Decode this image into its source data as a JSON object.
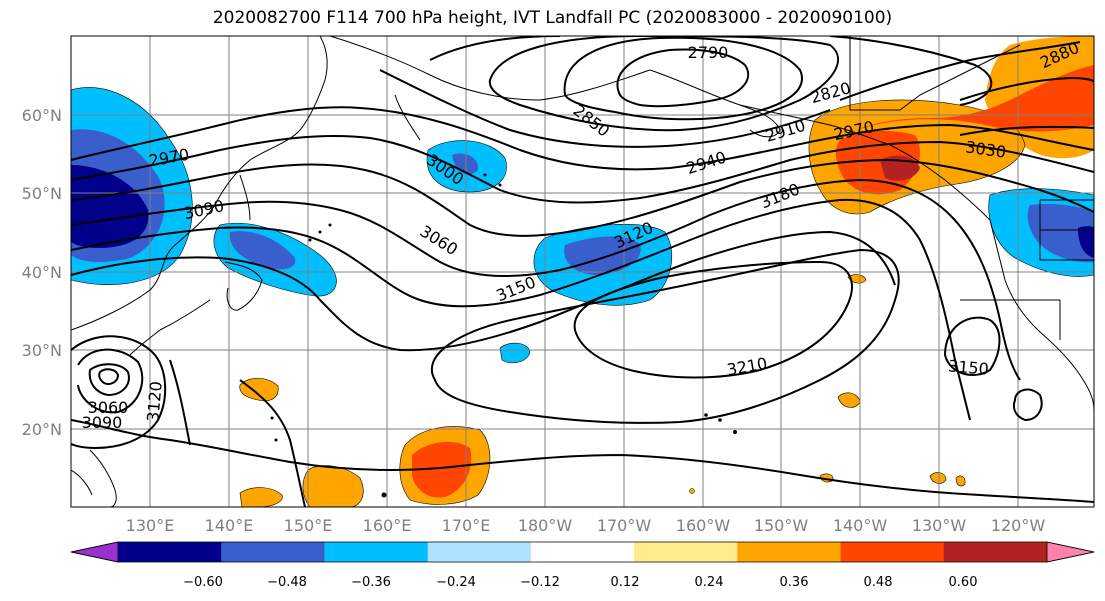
{
  "title": "2020082700 F114 700 hPa height, IVT Landfall PC (2020083000 - 2020090100)",
  "map": {
    "lat_ticks": [
      "60°N",
      "50°N",
      "40°N",
      "30°N",
      "20°N"
    ],
    "lon_ticks": [
      "130°E",
      "140°E",
      "150°E",
      "160°E",
      "170°E",
      "180°W",
      "170°W",
      "160°W",
      "150°W",
      "140°W",
      "130°W",
      "120°W"
    ],
    "contour_labels": [
      "2790",
      "2820",
      "2850",
      "2880",
      "2910",
      "2940",
      "2970",
      "2970",
      "3000",
      "3030",
      "3060",
      "3060",
      "3090",
      "3090",
      "3120",
      "3120",
      "3150",
      "3150",
      "3180",
      "3210"
    ]
  },
  "colorbar": {
    "ticks": [
      "−0.60",
      "−0.48",
      "−0.36",
      "−0.24",
      "−0.12",
      "0.12",
      "0.24",
      "0.36",
      "0.48",
      "0.60"
    ],
    "colors": [
      "#9932cc",
      "#00008b",
      "#3a5fcd",
      "#00bfff",
      "#b0e2ff",
      "#ffffff",
      "#ffec8b",
      "#ffa500",
      "#ff4500",
      "#b22222",
      "#ff82ab"
    ]
  }
}
